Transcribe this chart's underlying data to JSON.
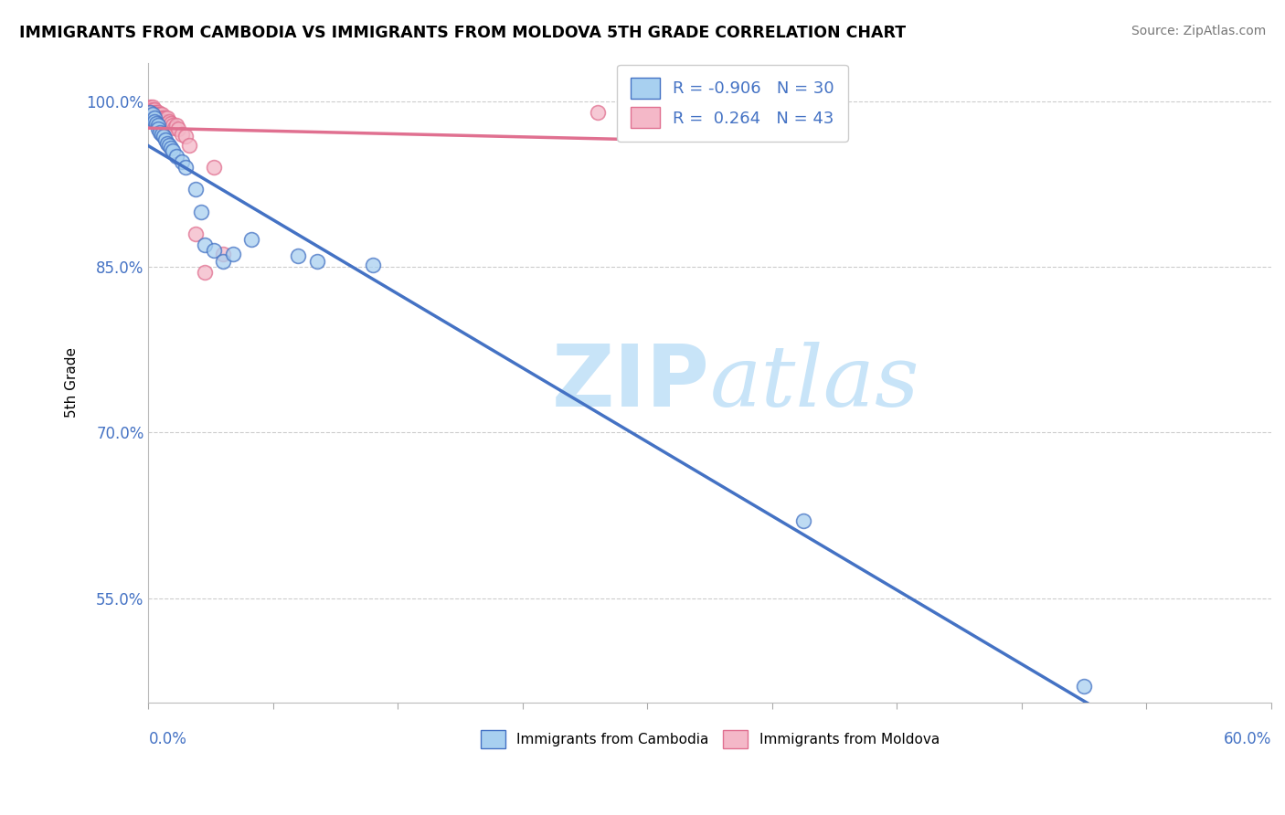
{
  "title": "IMMIGRANTS FROM CAMBODIA VS IMMIGRANTS FROM MOLDOVA 5TH GRADE CORRELATION CHART",
  "source": "Source: ZipAtlas.com",
  "ylabel": "5th Grade",
  "ytick_labels": [
    "100.0%",
    "85.0%",
    "70.0%",
    "55.0%"
  ],
  "ytick_values": [
    1.0,
    0.85,
    0.7,
    0.55
  ],
  "xlim": [
    0.0,
    0.6
  ],
  "ylim": [
    0.455,
    1.035
  ],
  "R_cambodia": -0.906,
  "N_cambodia": 30,
  "R_moldova": 0.264,
  "N_moldova": 43,
  "color_cambodia_fill": "#A8D0F0",
  "color_cambodia_edge": "#4472C4",
  "color_moldova_fill": "#F4B8C8",
  "color_moldova_edge": "#E07090",
  "color_cambodia_line": "#4472C4",
  "color_moldova_line": "#E07090",
  "watermark_color": "#C8E4F8",
  "cambodia_x": [
    0.001,
    0.002,
    0.003,
    0.003,
    0.004,
    0.005,
    0.005,
    0.006,
    0.007,
    0.008,
    0.009,
    0.01,
    0.011,
    0.012,
    0.013,
    0.015,
    0.018,
    0.02,
    0.025,
    0.028,
    0.03,
    0.035,
    0.04,
    0.045,
    0.055,
    0.08,
    0.09,
    0.12,
    0.35,
    0.5
  ],
  "cambodia_y": [
    0.99,
    0.988,
    0.985,
    0.982,
    0.98,
    0.978,
    0.975,
    0.972,
    0.97,
    0.968,
    0.965,
    0.962,
    0.96,
    0.958,
    0.955,
    0.95,
    0.945,
    0.94,
    0.92,
    0.9,
    0.87,
    0.865,
    0.855,
    0.862,
    0.875,
    0.86,
    0.855,
    0.852,
    0.62,
    0.47
  ],
  "moldova_x": [
    0.001,
    0.001,
    0.001,
    0.002,
    0.002,
    0.002,
    0.002,
    0.003,
    0.003,
    0.003,
    0.003,
    0.004,
    0.004,
    0.004,
    0.005,
    0.005,
    0.005,
    0.006,
    0.006,
    0.007,
    0.007,
    0.007,
    0.008,
    0.008,
    0.009,
    0.009,
    0.01,
    0.01,
    0.011,
    0.012,
    0.013,
    0.014,
    0.015,
    0.016,
    0.018,
    0.02,
    0.022,
    0.025,
    0.03,
    0.035,
    0.04,
    0.24,
    0.26
  ],
  "moldova_y": [
    0.995,
    0.992,
    0.99,
    0.995,
    0.992,
    0.99,
    0.988,
    0.992,
    0.99,
    0.988,
    0.985,
    0.99,
    0.988,
    0.985,
    0.99,
    0.988,
    0.985,
    0.988,
    0.985,
    0.988,
    0.985,
    0.982,
    0.985,
    0.982,
    0.985,
    0.982,
    0.985,
    0.98,
    0.982,
    0.98,
    0.978,
    0.976,
    0.978,
    0.975,
    0.97,
    0.968,
    0.96,
    0.88,
    0.845,
    0.94,
    0.862,
    0.99,
    0.985
  ]
}
